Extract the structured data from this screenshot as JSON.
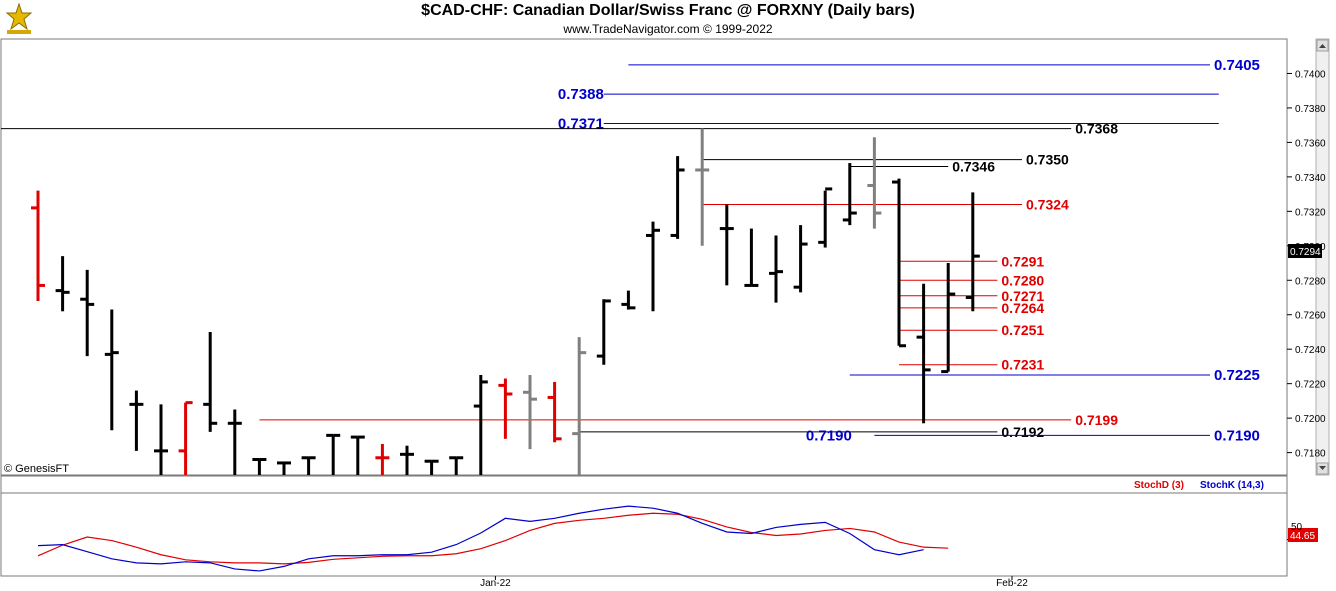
{
  "header": {
    "title": "$CAD-CHF:  Canadian Dollar/Swiss Franc @ FORXNY  (Daily bars)",
    "subtitle": "www.TradeNavigator.com © 1999-2022",
    "logo_icon": "trade-navigator-logo-icon",
    "watermark": "© GenesisFT"
  },
  "colors": {
    "up_bar": "#000000",
    "down_bar": "#e00000",
    "neutral_bar": "#808080",
    "blue_level": "#0000cc",
    "red_level": "#e00000",
    "black_level": "#000000",
    "stochD": "#e00000",
    "stochK": "#0000cc"
  },
  "chart_data": [
    {
      "type": "ohlc",
      "ylim": [
        0.7167,
        0.742
      ],
      "y_ticks": [
        "0.7180",
        "0.7200",
        "0.7220",
        "0.7240",
        "0.7260",
        "0.7280",
        "0.7300",
        "0.7320",
        "0.7340",
        "0.7360",
        "0.7380",
        "0.7400"
      ],
      "x_labels": [
        {
          "label": "Jan-22",
          "bar": 19
        },
        {
          "label": "Feb-22",
          "bar": 40
        }
      ],
      "last_price": "0.7294",
      "bars": [
        {
          "o": 0.7322,
          "h": 0.7332,
          "l": 0.7268,
          "c": 0.7277,
          "color": "down"
        },
        {
          "o": 0.7274,
          "h": 0.7294,
          "l": 0.7262,
          "c": 0.7273,
          "color": "up"
        },
        {
          "o": 0.7269,
          "h": 0.7286,
          "l": 0.7236,
          "c": 0.7266,
          "color": "up"
        },
        {
          "o": 0.7237,
          "h": 0.7263,
          "l": 0.7193,
          "c": 0.7238,
          "color": "up"
        },
        {
          "o": 0.7208,
          "h": 0.7216,
          "l": 0.7181,
          "c": 0.7208,
          "color": "up"
        },
        {
          "o": 0.7181,
          "h": 0.7208,
          "l": 0.7167,
          "c": 0.7181,
          "color": "up"
        },
        {
          "o": 0.7181,
          "h": 0.7209,
          "l": 0.7167,
          "c": 0.7209,
          "color": "down"
        },
        {
          "o": 0.7208,
          "h": 0.725,
          "l": 0.7192,
          "c": 0.7197,
          "color": "up"
        },
        {
          "o": 0.7197,
          "h": 0.7205,
          "l": 0.7167,
          "c": 0.7197,
          "color": "up"
        },
        {
          "o": 0.7176,
          "h": 0.7176,
          "l": 0.7167,
          "c": 0.7176,
          "color": "up"
        },
        {
          "o": 0.7174,
          "h": 0.7174,
          "l": 0.7167,
          "c": 0.7174,
          "color": "up"
        },
        {
          "o": 0.7177,
          "h": 0.7177,
          "l": 0.7167,
          "c": 0.7177,
          "color": "up"
        },
        {
          "o": 0.719,
          "h": 0.719,
          "l": 0.7167,
          "c": 0.719,
          "color": "up"
        },
        {
          "o": 0.7189,
          "h": 0.7189,
          "l": 0.7167,
          "c": 0.7189,
          "color": "up"
        },
        {
          "o": 0.7177,
          "h": 0.7185,
          "l": 0.7167,
          "c": 0.7177,
          "color": "down"
        },
        {
          "o": 0.7179,
          "h": 0.7184,
          "l": 0.7167,
          "c": 0.7179,
          "color": "up"
        },
        {
          "o": 0.7175,
          "h": 0.7175,
          "l": 0.7167,
          "c": 0.7175,
          "color": "up"
        },
        {
          "o": 0.7177,
          "h": 0.7177,
          "l": 0.7167,
          "c": 0.7177,
          "color": "up"
        },
        {
          "o": 0.7207,
          "h": 0.7225,
          "l": 0.7167,
          "c": 0.7221,
          "color": "up"
        },
        {
          "o": 0.7219,
          "h": 0.7223,
          "l": 0.7188,
          "c": 0.7214,
          "color": "down"
        },
        {
          "o": 0.7215,
          "h": 0.7225,
          "l": 0.7182,
          "c": 0.7211,
          "color": "neutral"
        },
        {
          "o": 0.7212,
          "h": 0.7221,
          "l": 0.7186,
          "c": 0.7188,
          "color": "down"
        },
        {
          "o": 0.7191,
          "h": 0.7247,
          "l": 0.7167,
          "c": 0.7238,
          "color": "neutral"
        },
        {
          "o": 0.7236,
          "h": 0.7269,
          "l": 0.7231,
          "c": 0.7268,
          "color": "up"
        },
        {
          "o": 0.7266,
          "h": 0.7274,
          "l": 0.7263,
          "c": 0.7264,
          "color": "up"
        },
        {
          "o": 0.7306,
          "h": 0.7314,
          "l": 0.7262,
          "c": 0.7309,
          "color": "up"
        },
        {
          "o": 0.7306,
          "h": 0.7352,
          "l": 0.7304,
          "c": 0.7344,
          "color": "up"
        },
        {
          "o": 0.7344,
          "h": 0.7368,
          "l": 0.73,
          "c": 0.7344,
          "color": "neutral"
        },
        {
          "o": 0.731,
          "h": 0.7324,
          "l": 0.7277,
          "c": 0.731,
          "color": "up"
        },
        {
          "o": 0.7277,
          "h": 0.731,
          "l": 0.7277,
          "c": 0.7277,
          "color": "up"
        },
        {
          "o": 0.7284,
          "h": 0.7306,
          "l": 0.7267,
          "c": 0.7285,
          "color": "up"
        },
        {
          "o": 0.7276,
          "h": 0.7312,
          "l": 0.7273,
          "c": 0.7301,
          "color": "up"
        },
        {
          "o": 0.7302,
          "h": 0.7332,
          "l": 0.7299,
          "c": 0.7333,
          "color": "up"
        },
        {
          "o": 0.7315,
          "h": 0.7348,
          "l": 0.7312,
          "c": 0.7319,
          "color": "up"
        },
        {
          "o": 0.7335,
          "h": 0.7363,
          "l": 0.731,
          "c": 0.7319,
          "color": "neutral"
        },
        {
          "o": 0.7337,
          "h": 0.7339,
          "l": 0.7242,
          "c": 0.7242,
          "color": "up"
        },
        {
          "o": 0.7247,
          "h": 0.7278,
          "l": 0.7197,
          "c": 0.7228,
          "color": "up"
        },
        {
          "o": 0.7227,
          "h": 0.729,
          "l": 0.7227,
          "c": 0.7272,
          "color": "up"
        },
        {
          "o": 0.727,
          "h": 0.7331,
          "l": 0.7262,
          "c": 0.7294,
          "color": "up"
        }
      ],
      "levels": [
        {
          "value": 0.7405,
          "label": "0.7405",
          "color": "blue",
          "from_bar": 24,
          "to_right": true,
          "label_side": "right"
        },
        {
          "value": 0.7388,
          "label": "0.7388",
          "color": "blue",
          "from_bar": 23,
          "to_bar": 48,
          "label_side": "left"
        },
        {
          "value": 0.7371,
          "label": "0.7371",
          "color": "blue",
          "from_bar": 23,
          "to_bar": 48,
          "label_side": "left"
        },
        {
          "value": 0.7368,
          "label": "0.7368",
          "color": "black",
          "from_start": true,
          "to_bar": 42,
          "label_side": "right"
        },
        {
          "value": 0.735,
          "label": "0.7350",
          "color": "black",
          "from_bar": 27,
          "to_bar": 40,
          "label_side": "right"
        },
        {
          "value": 0.7346,
          "label": "0.7346",
          "color": "black",
          "from_bar": 33,
          "to_bar": 37,
          "label_side": "right"
        },
        {
          "value": 0.7324,
          "label": "0.7324",
          "color": "red",
          "from_bar": 27,
          "to_bar": 40,
          "label_side": "right"
        },
        {
          "value": 0.7291,
          "label": "0.7291",
          "color": "red",
          "from_bar": 35,
          "to_bar": 39,
          "label_side": "right"
        },
        {
          "value": 0.728,
          "label": "0.7280",
          "color": "red",
          "from_bar": 35,
          "to_bar": 39,
          "label_side": "right"
        },
        {
          "value": 0.7271,
          "label": "0.7271",
          "color": "red",
          "from_bar": 35,
          "to_bar": 39,
          "label_side": "right"
        },
        {
          "value": 0.7264,
          "label": "0.7264",
          "color": "red",
          "from_bar": 35,
          "to_bar": 39,
          "label_side": "right"
        },
        {
          "value": 0.7251,
          "label": "0.7251",
          "color": "red",
          "from_bar": 35,
          "to_bar": 39,
          "label_side": "right"
        },
        {
          "value": 0.7231,
          "label": "0.7231",
          "color": "red",
          "from_bar": 35,
          "to_bar": 39,
          "label_side": "right"
        },
        {
          "value": 0.7225,
          "label": "0.7225",
          "color": "blue",
          "from_bar": 33,
          "to_right": true,
          "label_side": "right"
        },
        {
          "value": 0.7199,
          "label": "0.7199",
          "color": "red",
          "from_bar": 9,
          "to_bar": 42,
          "label_side": "right"
        },
        {
          "value": 0.7192,
          "label": "0.7192",
          "color": "black",
          "from_bar": 22,
          "to_bar": 39,
          "label_side": "right"
        },
        {
          "value": 0.719,
          "label": "0.7190",
          "color": "blue",
          "from_bar": 34,
          "to_right": true,
          "label_side": "right"
        },
        {
          "value": 0.719,
          "label": "0.7190",
          "color": "blue",
          "text_only": true,
          "at_bar": 33,
          "label_side": "left"
        }
      ]
    },
    {
      "type": "line",
      "series": [
        {
          "name": "StochD (3)",
          "color": "red",
          "values": [
            18,
            39,
            55,
            48,
            35,
            20,
            10,
            6,
            4,
            4,
            2,
            5,
            11,
            14,
            17,
            18,
            18,
            22,
            32,
            48,
            68,
            82,
            88,
            92,
            98,
            102,
            100,
            90,
            75,
            64,
            58,
            61,
            68,
            72,
            65,
            45,
            35,
            33
          ]
        },
        {
          "name": "StochK (14,3)",
          "color": "blue",
          "values": [
            38,
            40,
            26,
            12,
            4,
            2,
            6,
            4,
            -8,
            -12,
            -3,
            12,
            18,
            18,
            20,
            20,
            25,
            40,
            63,
            92,
            86,
            92,
            102,
            110,
            116,
            112,
            102,
            82,
            65,
            62,
            74,
            80,
            84,
            62,
            30,
            20,
            30
          ]
        }
      ],
      "ylim": [
        -20,
        140
      ],
      "tick_label": "50",
      "last_value": "44.65"
    }
  ]
}
